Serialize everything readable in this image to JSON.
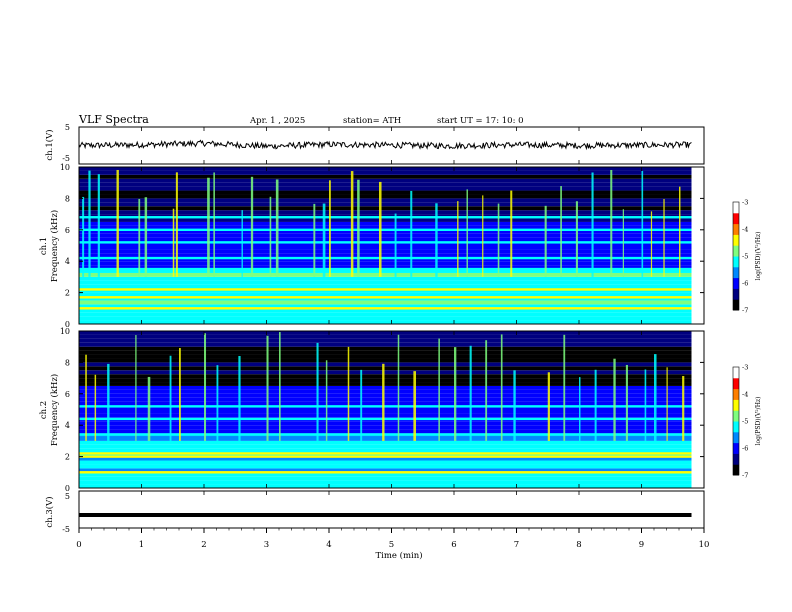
{
  "header": {
    "title": "VLF  Spectra",
    "date": "Apr. 1  , 2025",
    "station": "station= ATH",
    "start": "start  UT  =   17: 10: 0"
  },
  "colors": {
    "axes": "#000000",
    "waveform": "#000000",
    "colormap": [
      "#000000",
      "#00007f",
      "#0000ff",
      "#0088ff",
      "#00ffff",
      "#7fff7f",
      "#ffff00",
      "#ff7f00",
      "#ff0000",
      "#ffffff"
    ]
  },
  "chart_data": [
    {
      "type": "line",
      "panel": "ch1-waveform",
      "ylabel": "ch.1(V)",
      "ylim": [
        -5,
        5
      ],
      "yticks": [
        "5",
        "-5"
      ],
      "x": [
        0,
        1,
        2,
        3,
        4,
        5,
        6,
        7,
        8,
        9,
        9.8
      ],
      "y": [
        0,
        0.2,
        0.6,
        -0.2,
        0.3,
        0.1,
        -0.1,
        0.2,
        0.0,
        0.1,
        0.2
      ]
    },
    {
      "type": "heatmap",
      "panel": "ch1-spectrogram",
      "ylabel": "ch.1\nFrequency  (kHz)",
      "ylim": [
        0,
        10
      ],
      "yticks": [
        "0",
        "2",
        "4",
        "6",
        "8",
        "10"
      ],
      "colorbar": {
        "label": "log(PSD)(V²/Hz)",
        "ticks": [
          "-3",
          "-4",
          "-5",
          "-6",
          "-7"
        ],
        "range": [
          -7,
          -3
        ]
      },
      "bands_khz": [
        1.0,
        1.7,
        2.2,
        2.9,
        3.5,
        4.2,
        5.2,
        6.0,
        6.8
      ],
      "sferic_times_min": [
        0.05,
        0.15,
        0.3,
        0.6,
        0.95,
        1.05,
        1.5,
        1.55,
        2.05,
        2.15,
        2.6,
        2.75,
        3.05,
        3.15,
        3.75,
        3.9,
        4.0,
        4.35,
        4.45,
        4.8,
        5.05,
        5.3,
        5.7,
        6.05,
        6.2,
        6.45,
        6.7,
        6.9,
        7.45,
        7.7,
        7.95,
        8.2,
        8.5,
        8.7,
        9.0,
        9.15,
        9.35,
        9.6
      ]
    },
    {
      "type": "heatmap",
      "panel": "ch2-spectrogram",
      "ylabel": "ch.2\nFrequency  (kHz)",
      "ylim": [
        0,
        10
      ],
      "yticks": [
        "0",
        "2",
        "4",
        "6",
        "8",
        "10"
      ],
      "colorbar": {
        "label": "log(PSD)(V²/Hz)",
        "ticks": [
          "-3",
          "-4",
          "-5",
          "-6",
          "-7"
        ],
        "range": [
          -7,
          -3
        ]
      },
      "bands_khz": [
        1.0,
        2.0,
        2.2,
        3.4,
        4.4,
        5.2
      ],
      "sferic_times_min": [
        0.1,
        0.25,
        0.45,
        0.9,
        1.1,
        1.45,
        1.6,
        2.0,
        2.2,
        2.55,
        3.0,
        3.2,
        3.8,
        3.95,
        4.3,
        4.5,
        4.85,
        5.1,
        5.35,
        5.75,
        6.0,
        6.25,
        6.5,
        6.75,
        6.95,
        7.5,
        7.75,
        8.0,
        8.25,
        8.55,
        8.75,
        9.05,
        9.2,
        9.4,
        9.65
      ]
    },
    {
      "type": "line",
      "panel": "ch3-waveform",
      "ylabel": "ch.3(V)",
      "xlabel": "Time  (min)",
      "ylim": [
        -5,
        5
      ],
      "yticks": [
        "5",
        "0",
        "-5"
      ],
      "xlim": [
        0,
        10
      ],
      "xticks": [
        "0",
        "1",
        "2",
        "3",
        "4",
        "5",
        "6",
        "7",
        "8",
        "9",
        "10"
      ],
      "x": [
        0,
        9.8
      ],
      "y": [
        -1.5,
        -1.5
      ]
    }
  ]
}
